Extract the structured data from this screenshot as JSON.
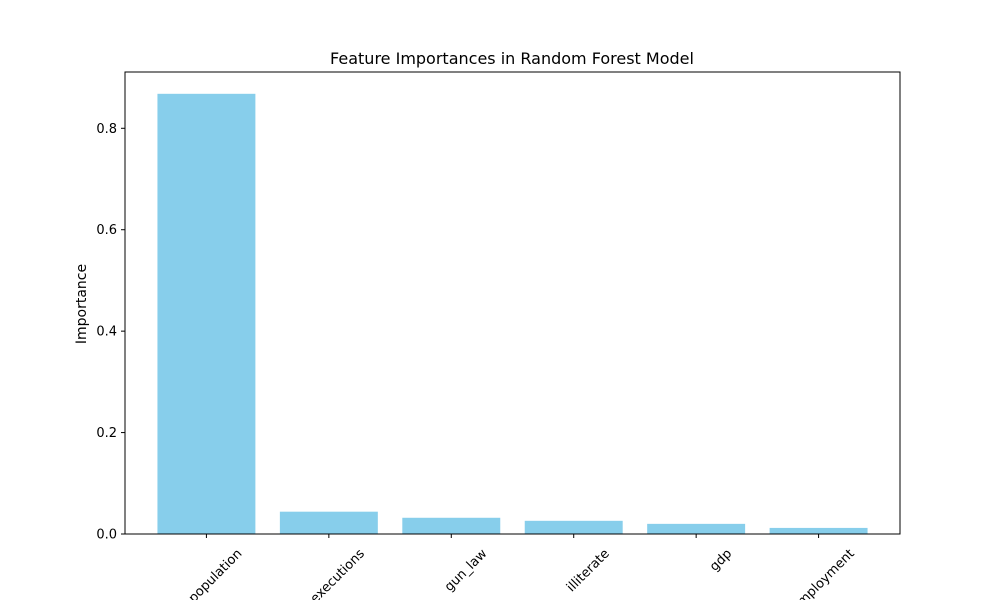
{
  "chart_data": {
    "type": "bar",
    "title": "Feature Importances in Random Forest Model",
    "xlabel": "",
    "ylabel": "Importance",
    "categories": [
      "population",
      "executions",
      "gun_law",
      "illiterate",
      "gdp",
      "unemployment"
    ],
    "values": [
      0.868,
      0.044,
      0.032,
      0.026,
      0.02,
      0.012
    ],
    "yticks": [
      0.0,
      0.2,
      0.4,
      0.6,
      0.8
    ],
    "ytick_labels": [
      "0.0",
      "0.2",
      "0.4",
      "0.6",
      "0.8"
    ],
    "ylim": [
      0,
      0.911
    ],
    "bar_color": "#87ceeb",
    "grid": false,
    "legend": "none"
  }
}
